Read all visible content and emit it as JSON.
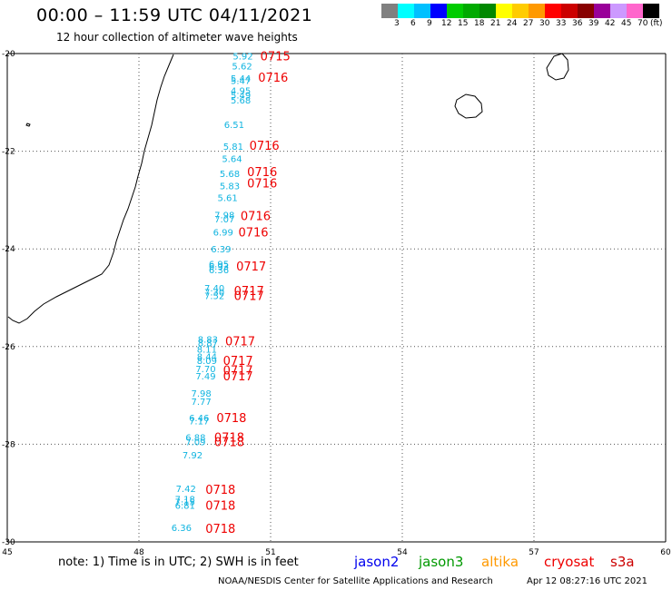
{
  "header": {
    "title": "00:00 – 11:59 UTC 04/11/2021",
    "subtitle": "12 hour collection of altimeter wave heights"
  },
  "colorbar": {
    "colors": [
      "#808080",
      "#00ffff",
      "#00c0ff",
      "#0000ff",
      "#00cc00",
      "#00aa00",
      "#008800",
      "#ffff00",
      "#ffcc00",
      "#ff9900",
      "#ff0000",
      "#cc0000",
      "#880000",
      "#990099",
      "#cc99ff",
      "#ff66cc",
      "#000000"
    ],
    "labels": [
      "3",
      "6",
      "9",
      "12",
      "15",
      "18",
      "21",
      "24",
      "27",
      "30",
      "33",
      "36",
      "39",
      "42",
      "45",
      "70"
    ],
    "unit": "(ft)"
  },
  "axes": {
    "lon_ticks": [
      "45",
      "48",
      "51",
      "54",
      "57",
      "60"
    ],
    "lat_ticks": [
      "-20",
      "-22",
      "-24",
      "-26",
      "-28",
      "-30"
    ]
  },
  "swh": [
    {
      "label": "5.92",
      "lat": -20.05,
      "lon": 50.6
    },
    {
      "label": "5.62",
      "lat": -20.25,
      "lon": 50.58
    },
    {
      "label": "5.44",
      "lat": -20.5,
      "lon": 50.55
    },
    {
      "label": "5.47",
      "lat": -20.55,
      "lon": 50.55
    },
    {
      "label": "4.95",
      "lat": -20.75,
      "lon": 50.55
    },
    {
      "label": "5.49",
      "lat": -20.85,
      "lon": 50.55
    },
    {
      "label": "5.68",
      "lat": -20.95,
      "lon": 50.55
    },
    {
      "label": "6.51",
      "lat": -21.45,
      "lon": 50.4
    },
    {
      "label": "5.81",
      "lat": -21.9,
      "lon": 50.38
    },
    {
      "label": "5.64",
      "lat": -22.15,
      "lon": 50.35
    },
    {
      "label": "5.68",
      "lat": -22.45,
      "lon": 50.3
    },
    {
      "label": "5.83",
      "lat": -22.7,
      "lon": 50.3
    },
    {
      "label": "5.61",
      "lat": -22.95,
      "lon": 50.25
    },
    {
      "label": "7.98",
      "lat": -23.3,
      "lon": 50.18
    },
    {
      "label": "7.07",
      "lat": -23.38,
      "lon": 50.18
    },
    {
      "label": "6.99",
      "lat": -23.65,
      "lon": 50.15
    },
    {
      "label": "6.39",
      "lat": -24.0,
      "lon": 50.1
    },
    {
      "label": "6.95",
      "lat": -24.3,
      "lon": 50.05
    },
    {
      "label": "6.93",
      "lat": -24.35,
      "lon": 50.05
    },
    {
      "label": "6.36",
      "lat": -24.42,
      "lon": 50.05
    },
    {
      "label": "7.40",
      "lat": -24.8,
      "lon": 49.95
    },
    {
      "label": "7.30",
      "lat": -24.88,
      "lon": 49.95
    },
    {
      "label": "7.52",
      "lat": -24.95,
      "lon": 49.95
    },
    {
      "label": "8.83",
      "lat": -25.85,
      "lon": 49.8
    },
    {
      "label": "8.87",
      "lat": -25.92,
      "lon": 49.8
    },
    {
      "label": "8.11",
      "lat": -26.05,
      "lon": 49.78
    },
    {
      "label": "8.44",
      "lat": -26.2,
      "lon": 49.78
    },
    {
      "label": "8.09",
      "lat": -26.28,
      "lon": 49.78
    },
    {
      "label": "7.70",
      "lat": -26.45,
      "lon": 49.75
    },
    {
      "label": "7.49",
      "lat": -26.6,
      "lon": 49.75
    },
    {
      "label": "7.98",
      "lat": -26.95,
      "lon": 49.65
    },
    {
      "label": "7.77",
      "lat": -27.12,
      "lon": 49.65
    },
    {
      "label": "6.46",
      "lat": -27.45,
      "lon": 49.6
    },
    {
      "label": "7.17",
      "lat": -27.52,
      "lon": 49.6
    },
    {
      "label": "6.88",
      "lat": -27.85,
      "lon": 49.52
    },
    {
      "label": "7.09",
      "lat": -27.95,
      "lon": 49.52
    },
    {
      "label": "7.92",
      "lat": -28.22,
      "lon": 49.45
    },
    {
      "label": "7.42",
      "lat": -28.9,
      "lon": 49.3
    },
    {
      "label": "7.18",
      "lat": -29.12,
      "lon": 49.28
    },
    {
      "label": "7.15",
      "lat": -29.17,
      "lon": 49.28
    },
    {
      "label": "6.81",
      "lat": -29.25,
      "lon": 49.28
    },
    {
      "label": "6.36",
      "lat": -29.7,
      "lon": 49.2
    }
  ],
  "times": [
    {
      "label": "0715",
      "lat": -20.05,
      "lon": 51.45
    },
    {
      "label": "0716",
      "lat": -20.48,
      "lon": 51.4
    },
    {
      "label": "0716",
      "lat": -21.88,
      "lon": 51.2
    },
    {
      "label": "0716",
      "lat": -22.42,
      "lon": 51.15
    },
    {
      "label": "0716",
      "lat": -22.65,
      "lon": 51.15
    },
    {
      "label": "0716",
      "lat": -23.32,
      "lon": 51.0
    },
    {
      "label": "0716",
      "lat": -23.65,
      "lon": 50.95
    },
    {
      "label": "0717",
      "lat": -24.35,
      "lon": 50.9
    },
    {
      "label": "0717",
      "lat": -24.85,
      "lon": 50.85
    },
    {
      "label": "0717",
      "lat": -24.95,
      "lon": 50.85
    },
    {
      "label": "0717",
      "lat": -25.88,
      "lon": 50.65
    },
    {
      "label": "0717",
      "lat": -26.28,
      "lon": 50.6
    },
    {
      "label": "0717",
      "lat": -26.48,
      "lon": 50.6
    },
    {
      "label": "0717",
      "lat": -26.6,
      "lon": 50.6
    },
    {
      "label": "0718",
      "lat": -27.45,
      "lon": 50.45
    },
    {
      "label": "0718",
      "lat": -27.85,
      "lon": 50.4
    },
    {
      "label": "0718",
      "lat": -27.95,
      "lon": 50.4
    },
    {
      "label": "0718",
      "lat": -28.92,
      "lon": 50.2
    },
    {
      "label": "0718",
      "lat": -29.25,
      "lon": 50.2
    },
    {
      "label": "0718",
      "lat": -29.72,
      "lon": 50.2
    }
  ],
  "colors": {
    "swh": "#10b4e0",
    "time": "#ee0000",
    "jason2": "#0000ee",
    "jason3": "#009900",
    "altika": "#ff9900",
    "cryosat": "#ee0000",
    "s3a": "#cc0000",
    "grid": "#555555"
  },
  "footer": {
    "note": "note: 1) Time is in UTC; 2) SWH is in feet",
    "satellites": [
      "jason2",
      "jason3",
      "altika",
      "cryosat",
      "s3a"
    ],
    "credit_left": "NOAA/NESDIS Center for Satellite Applications and Research",
    "credit_right": "Apr 12 08:27:16 UTC 2021"
  }
}
